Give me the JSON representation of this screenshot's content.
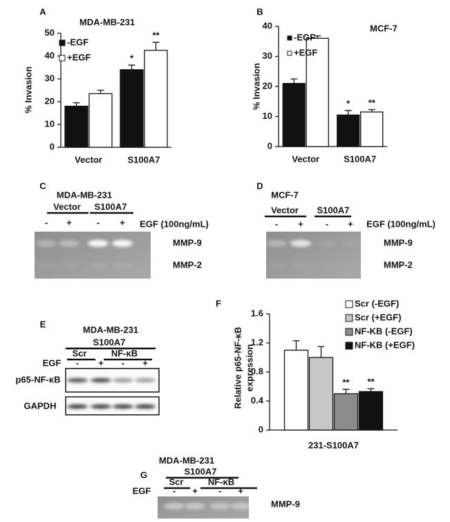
{
  "chart_data": [
    {
      "type": "bar",
      "label": "A",
      "title": "MDA-MB-231",
      "ylabel": [
        "% Invasion"
      ],
      "categories": [
        "Vector",
        "S100A7"
      ],
      "series": [
        {
          "name": "-EGF",
          "color": "#111111",
          "values": [
            18,
            34
          ],
          "errors": [
            1.5,
            2
          ],
          "significance": [
            null,
            "*"
          ]
        },
        {
          "name": "+EGF",
          "color": "#ffffff",
          "values": [
            23.5,
            42.5
          ],
          "errors": [
            1.5,
            3.5
          ],
          "significance": [
            null,
            "**"
          ]
        }
      ],
      "ylim": [
        0,
        50
      ],
      "yticks": [
        0,
        10,
        20,
        30,
        40,
        50
      ]
    },
    {
      "type": "bar",
      "label": "B",
      "title": "MCF-7",
      "ylabel": [
        "% Invasion"
      ],
      "categories": [
        "Vector",
        "S100A7"
      ],
      "series": [
        {
          "name": "-EGF",
          "color": "#111111",
          "values": [
            21,
            10.5
          ],
          "errors": [
            1.5,
            1.5
          ],
          "significance": [
            null,
            "*"
          ]
        },
        {
          "name": "+EGF",
          "color": "#ffffff",
          "values": [
            36,
            11.5
          ],
          "errors": [
            0.8,
            0.8
          ],
          "significance": [
            null,
            "**"
          ]
        }
      ],
      "ylim": [
        0,
        40
      ],
      "yticks": [
        0,
        10,
        20,
        30,
        40
      ]
    },
    {
      "type": "bar",
      "label": "F",
      "ylabel": [
        "Relative p65-NF-κB",
        "expression"
      ],
      "categories": [
        "231-S100A7"
      ],
      "series": [
        {
          "name": "Scr (-EGF)",
          "color": "#ffffff",
          "values": [
            1.1
          ],
          "errors": [
            0.13
          ],
          "significance": [
            null
          ]
        },
        {
          "name": "Scr (+EGF)",
          "color": "#c8c8c8",
          "values": [
            1.0
          ],
          "errors": [
            0.15
          ],
          "significance": [
            null
          ]
        },
        {
          "name": "NF-KB (-EGF)",
          "color": "#8c8c8c",
          "values": [
            0.5
          ],
          "errors": [
            0.06
          ],
          "significance": [
            "**"
          ]
        },
        {
          "name": "NF-KB (+EGF)",
          "color": "#111111",
          "values": [
            0.53
          ],
          "errors": [
            0.04
          ],
          "significance": [
            "**"
          ]
        }
      ],
      "ylim": [
        0,
        1.6
      ],
      "yticks": [
        0,
        0.4,
        0.8,
        1.2,
        1.6
      ]
    }
  ],
  "gels": [
    {
      "label": "C",
      "title": "MDA-MB-231",
      "groups": [
        "Vector",
        "S100A7"
      ],
      "treatment": "EGF (100ng/mL)",
      "lanes": [
        "-",
        "+",
        "-",
        "+"
      ],
      "rows": [
        "MMP-9",
        "MMP-2"
      ]
    },
    {
      "label": "D",
      "title": "MCF-7",
      "groups": [
        "Vector",
        "S100A7"
      ],
      "treatment": "EGF (100ng/mL)",
      "lanes": [
        "-",
        "+",
        "-",
        "+"
      ],
      "rows": [
        "MMP-9",
        "MMP-2"
      ]
    },
    {
      "label": "E",
      "title": "MDA-MB-231",
      "header": "S100A7",
      "groups": [
        "Scr",
        "NF-κB"
      ],
      "treatment": "EGF",
      "lanes": [
        "-",
        "+",
        "-",
        "+"
      ],
      "rows": [
        "p65-NF-κB",
        "GAPDH"
      ]
    },
    {
      "label": "G",
      "title": "MDA-MB-231",
      "header": "S100A7",
      "groups": [
        "Scr",
        "NF-κB"
      ],
      "treatment": "EGF",
      "lanes": [
        "-",
        "+",
        "-",
        "+"
      ],
      "rows": [
        "MMP-9"
      ]
    }
  ]
}
